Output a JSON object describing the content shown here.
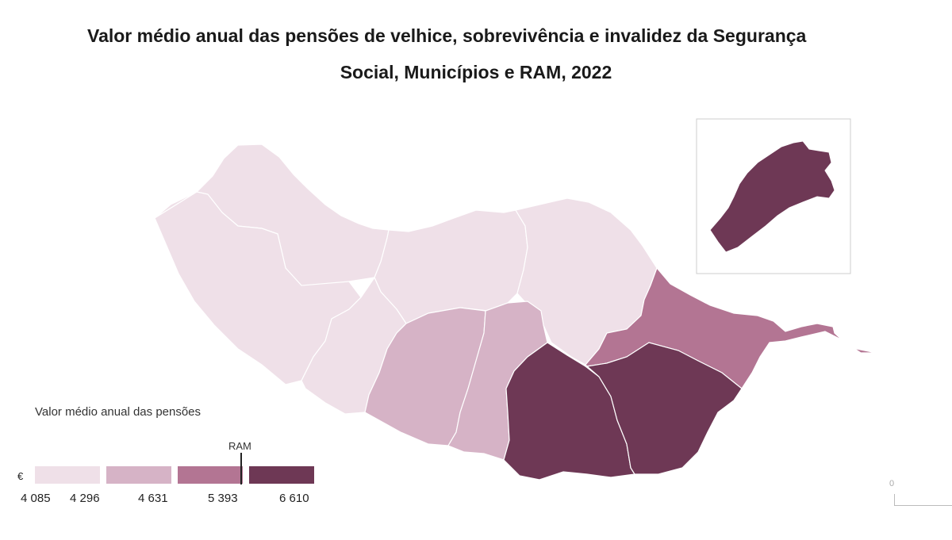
{
  "title": {
    "line1": "Valor médio anual das pensões de velhice, sobrevivência e invalidez da Segurança",
    "line2": "Social, Municípios e RAM, 2022"
  },
  "legend": {
    "title": "Valor médio anual das pensões",
    "unit": "€",
    "ram_label": "RAM",
    "classes": [
      {
        "color": "#efe0e8",
        "from": "4 085",
        "to": "4 296"
      },
      {
        "color": "#d6b3c6",
        "from": "4 296",
        "to": "4 631"
      },
      {
        "color": "#b37593",
        "from": "4 631",
        "to": "5 393"
      },
      {
        "color": "#6e3855",
        "from": "5 393",
        "to": "6 610"
      }
    ],
    "labels": [
      "4 085",
      "4 296",
      "4 631",
      "5 393",
      "6 610"
    ]
  },
  "scale": {
    "zero": "0"
  },
  "colors": {
    "class1": "#efe0e8",
    "class2": "#d6b3c6",
    "class3": "#b37593",
    "class4": "#6e3855",
    "border": "#ffffff",
    "inset_border": "#cccccc"
  }
}
